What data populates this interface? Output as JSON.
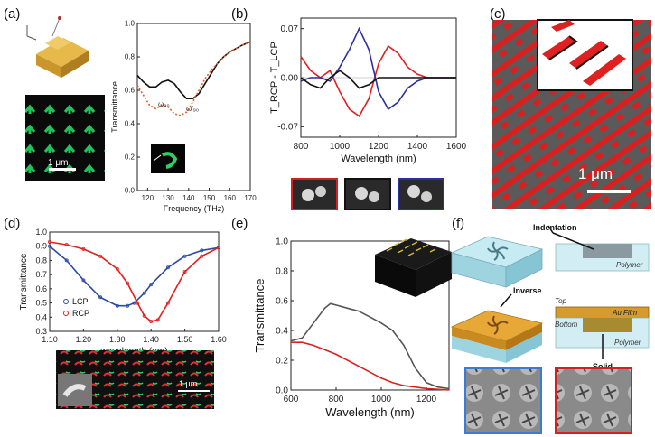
{
  "figure": {
    "panel_labels": [
      "(a)",
      "(b)",
      "(c)",
      "(d)",
      "(e)",
      "(f)"
    ],
    "colors": {
      "red": "#e02020",
      "blue": "#2b2fa0",
      "black": "#111111",
      "green": "#22c35a",
      "orange": "#e0a030",
      "teal": "#a8dde6"
    }
  },
  "panel_a": {
    "scale_bar": "1 μm",
    "annotations": [
      "ω₉₀",
      "ω′₉₀"
    ]
  },
  "panel_b": {
    "dimer_views": [
      "RCP dimer view",
      "LCP dimer view",
      "reference dimer view"
    ]
  },
  "panel_c": {
    "scale_bar": "1 μm"
  },
  "panel_d": {
    "scale_bar": "1 μm"
  },
  "panel_f": {
    "labels": {
      "indentation": "Indentation",
      "polymer1": "Polymer",
      "inverse": "Inverse",
      "top": "Top",
      "bottom": "Bottom",
      "au_film": "Au Film",
      "polymer2": "Polymer",
      "solid": "Solid"
    }
  },
  "chart_data": [
    {
      "id": "a",
      "type": "line",
      "title": "",
      "xlabel": "Frequency (THz)",
      "ylabel": "Transmittance",
      "xlim": [
        115,
        170
      ],
      "ylim": [
        0.0,
        1.0
      ],
      "xticks": [
        "120",
        "130",
        "140",
        "150",
        "160",
        "170"
      ],
      "yticks": [
        "0.0",
        "0.2",
        "0.4",
        "0.6",
        "0.8",
        "1.0"
      ],
      "series": [
        {
          "name": "solid",
          "style": "solid",
          "color": "#111111",
          "x": [
            115,
            118,
            121,
            124,
            127,
            130,
            133,
            136,
            139,
            142,
            145,
            148,
            151,
            154,
            157,
            160,
            163,
            166,
            170
          ],
          "y": [
            0.69,
            0.65,
            0.62,
            0.62,
            0.65,
            0.66,
            0.64,
            0.59,
            0.55,
            0.55,
            0.58,
            0.64,
            0.7,
            0.76,
            0.8,
            0.83,
            0.85,
            0.87,
            0.89
          ]
        },
        {
          "name": "dotted",
          "style": "dotted",
          "color": "#e0602a",
          "x": [
            115,
            118,
            121,
            124,
            127,
            130,
            133,
            136,
            139,
            142,
            145,
            148,
            151,
            154,
            157,
            160,
            163,
            166,
            170
          ],
          "y": [
            0.63,
            0.57,
            0.51,
            0.49,
            0.51,
            0.5,
            0.46,
            0.45,
            0.47,
            0.53,
            0.6,
            0.67,
            0.72,
            0.76,
            0.8,
            0.83,
            0.85,
            0.87,
            0.89
          ]
        }
      ]
    },
    {
      "id": "b",
      "type": "line",
      "xlabel": "Wavelength (nm)",
      "ylabel": "T_RCP - T_LCP",
      "xlim": [
        800,
        1600
      ],
      "ylim": [
        -0.085,
        0.085
      ],
      "xticks": [
        "800",
        "1000",
        "1200",
        "1400",
        "1600"
      ],
      "yticks": [
        "0.07",
        "0.00",
        "-0.07"
      ],
      "series": [
        {
          "name": "red",
          "color": "#e02020",
          "x": [
            800,
            850,
            900,
            950,
            1000,
            1050,
            1100,
            1150,
            1200,
            1250,
            1300,
            1350,
            1400,
            1450,
            1500,
            1550,
            1600
          ],
          "y": [
            0.03,
            0.01,
            0.0,
            0.01,
            -0.02,
            -0.045,
            -0.055,
            -0.03,
            0.02,
            0.045,
            0.035,
            0.015,
            0.005,
            0.0,
            0.0,
            0.0,
            0.0
          ]
        },
        {
          "name": "blue",
          "color": "#2b2fa0",
          "x": [
            800,
            850,
            900,
            950,
            1000,
            1050,
            1100,
            1150,
            1200,
            1250,
            1300,
            1350,
            1400,
            1450,
            1500,
            1550,
            1600
          ],
          "y": [
            -0.005,
            0.0,
            0.0,
            -0.005,
            0.015,
            0.04,
            0.07,
            0.04,
            -0.02,
            -0.045,
            -0.035,
            -0.015,
            -0.005,
            0.0,
            0.0,
            0.0,
            0.0
          ]
        },
        {
          "name": "black",
          "color": "#111111",
          "x": [
            800,
            850,
            900,
            950,
            1000,
            1050,
            1100,
            1150,
            1200,
            1250,
            1300,
            1350,
            1400,
            1450,
            1500,
            1550,
            1600
          ],
          "y": [
            0.0,
            -0.01,
            -0.015,
            0.0,
            0.01,
            0.0,
            -0.015,
            -0.01,
            0.0,
            0.0,
            0.0,
            0.0,
            0.0,
            0.0,
            0.0,
            0.0,
            0.0
          ]
        }
      ]
    },
    {
      "id": "d",
      "type": "line",
      "xlabel": "wavelength (μm)",
      "ylabel": "Transmittance",
      "xlim": [
        1.1,
        1.6
      ],
      "ylim": [
        0.3,
        1.0
      ],
      "xticks": [
        "1.10",
        "1.20",
        "1.30",
        "1.40",
        "1.50",
        "1.60"
      ],
      "yticks": [
        "0.3",
        "0.4",
        "0.5",
        "0.6",
        "0.7",
        "0.8",
        "0.9",
        "1.0"
      ],
      "legend": [
        "LCP",
        "RCP"
      ],
      "series": [
        {
          "name": "LCP",
          "color": "#2b4aa8",
          "x": [
            1.1,
            1.15,
            1.2,
            1.25,
            1.3,
            1.33,
            1.35,
            1.38,
            1.4,
            1.45,
            1.5,
            1.55,
            1.6
          ],
          "y": [
            0.9,
            0.8,
            0.66,
            0.54,
            0.48,
            0.48,
            0.5,
            0.57,
            0.63,
            0.75,
            0.83,
            0.87,
            0.89
          ]
        },
        {
          "name": "RCP",
          "color": "#e02020",
          "x": [
            1.1,
            1.15,
            1.2,
            1.25,
            1.3,
            1.33,
            1.36,
            1.38,
            1.4,
            1.42,
            1.45,
            1.5,
            1.55,
            1.6
          ],
          "y": [
            0.93,
            0.91,
            0.88,
            0.83,
            0.74,
            0.64,
            0.5,
            0.41,
            0.37,
            0.38,
            0.5,
            0.72,
            0.83,
            0.89
          ]
        }
      ]
    },
    {
      "id": "e",
      "type": "line",
      "xlabel": "Wavelength (nm)",
      "ylabel": "Transmittance",
      "xlim": [
        600,
        1300
      ],
      "ylim": [
        0.0,
        1.0
      ],
      "xticks": [
        "600",
        "800",
        "1000",
        "1200"
      ],
      "yticks": [
        "0.0",
        "0.2",
        "0.4",
        "0.6",
        "0.8",
        "1.0"
      ],
      "series": [
        {
          "name": "gray",
          "color": "#555555",
          "x": [
            600,
            650,
            700,
            750,
            775,
            800,
            850,
            900,
            950,
            1000,
            1050,
            1100,
            1150,
            1200,
            1250,
            1300
          ],
          "y": [
            0.33,
            0.35,
            0.45,
            0.55,
            0.58,
            0.57,
            0.55,
            0.53,
            0.49,
            0.45,
            0.4,
            0.3,
            0.15,
            0.05,
            0.02,
            0.01
          ]
        },
        {
          "name": "red",
          "color": "#e02020",
          "x": [
            600,
            650,
            700,
            750,
            800,
            850,
            900,
            950,
            1000,
            1050,
            1100,
            1150,
            1200,
            1250,
            1300
          ],
          "y": [
            0.32,
            0.32,
            0.3,
            0.27,
            0.24,
            0.2,
            0.16,
            0.12,
            0.08,
            0.05,
            0.03,
            0.02,
            0.01,
            0.005,
            0.0
          ]
        }
      ]
    }
  ]
}
